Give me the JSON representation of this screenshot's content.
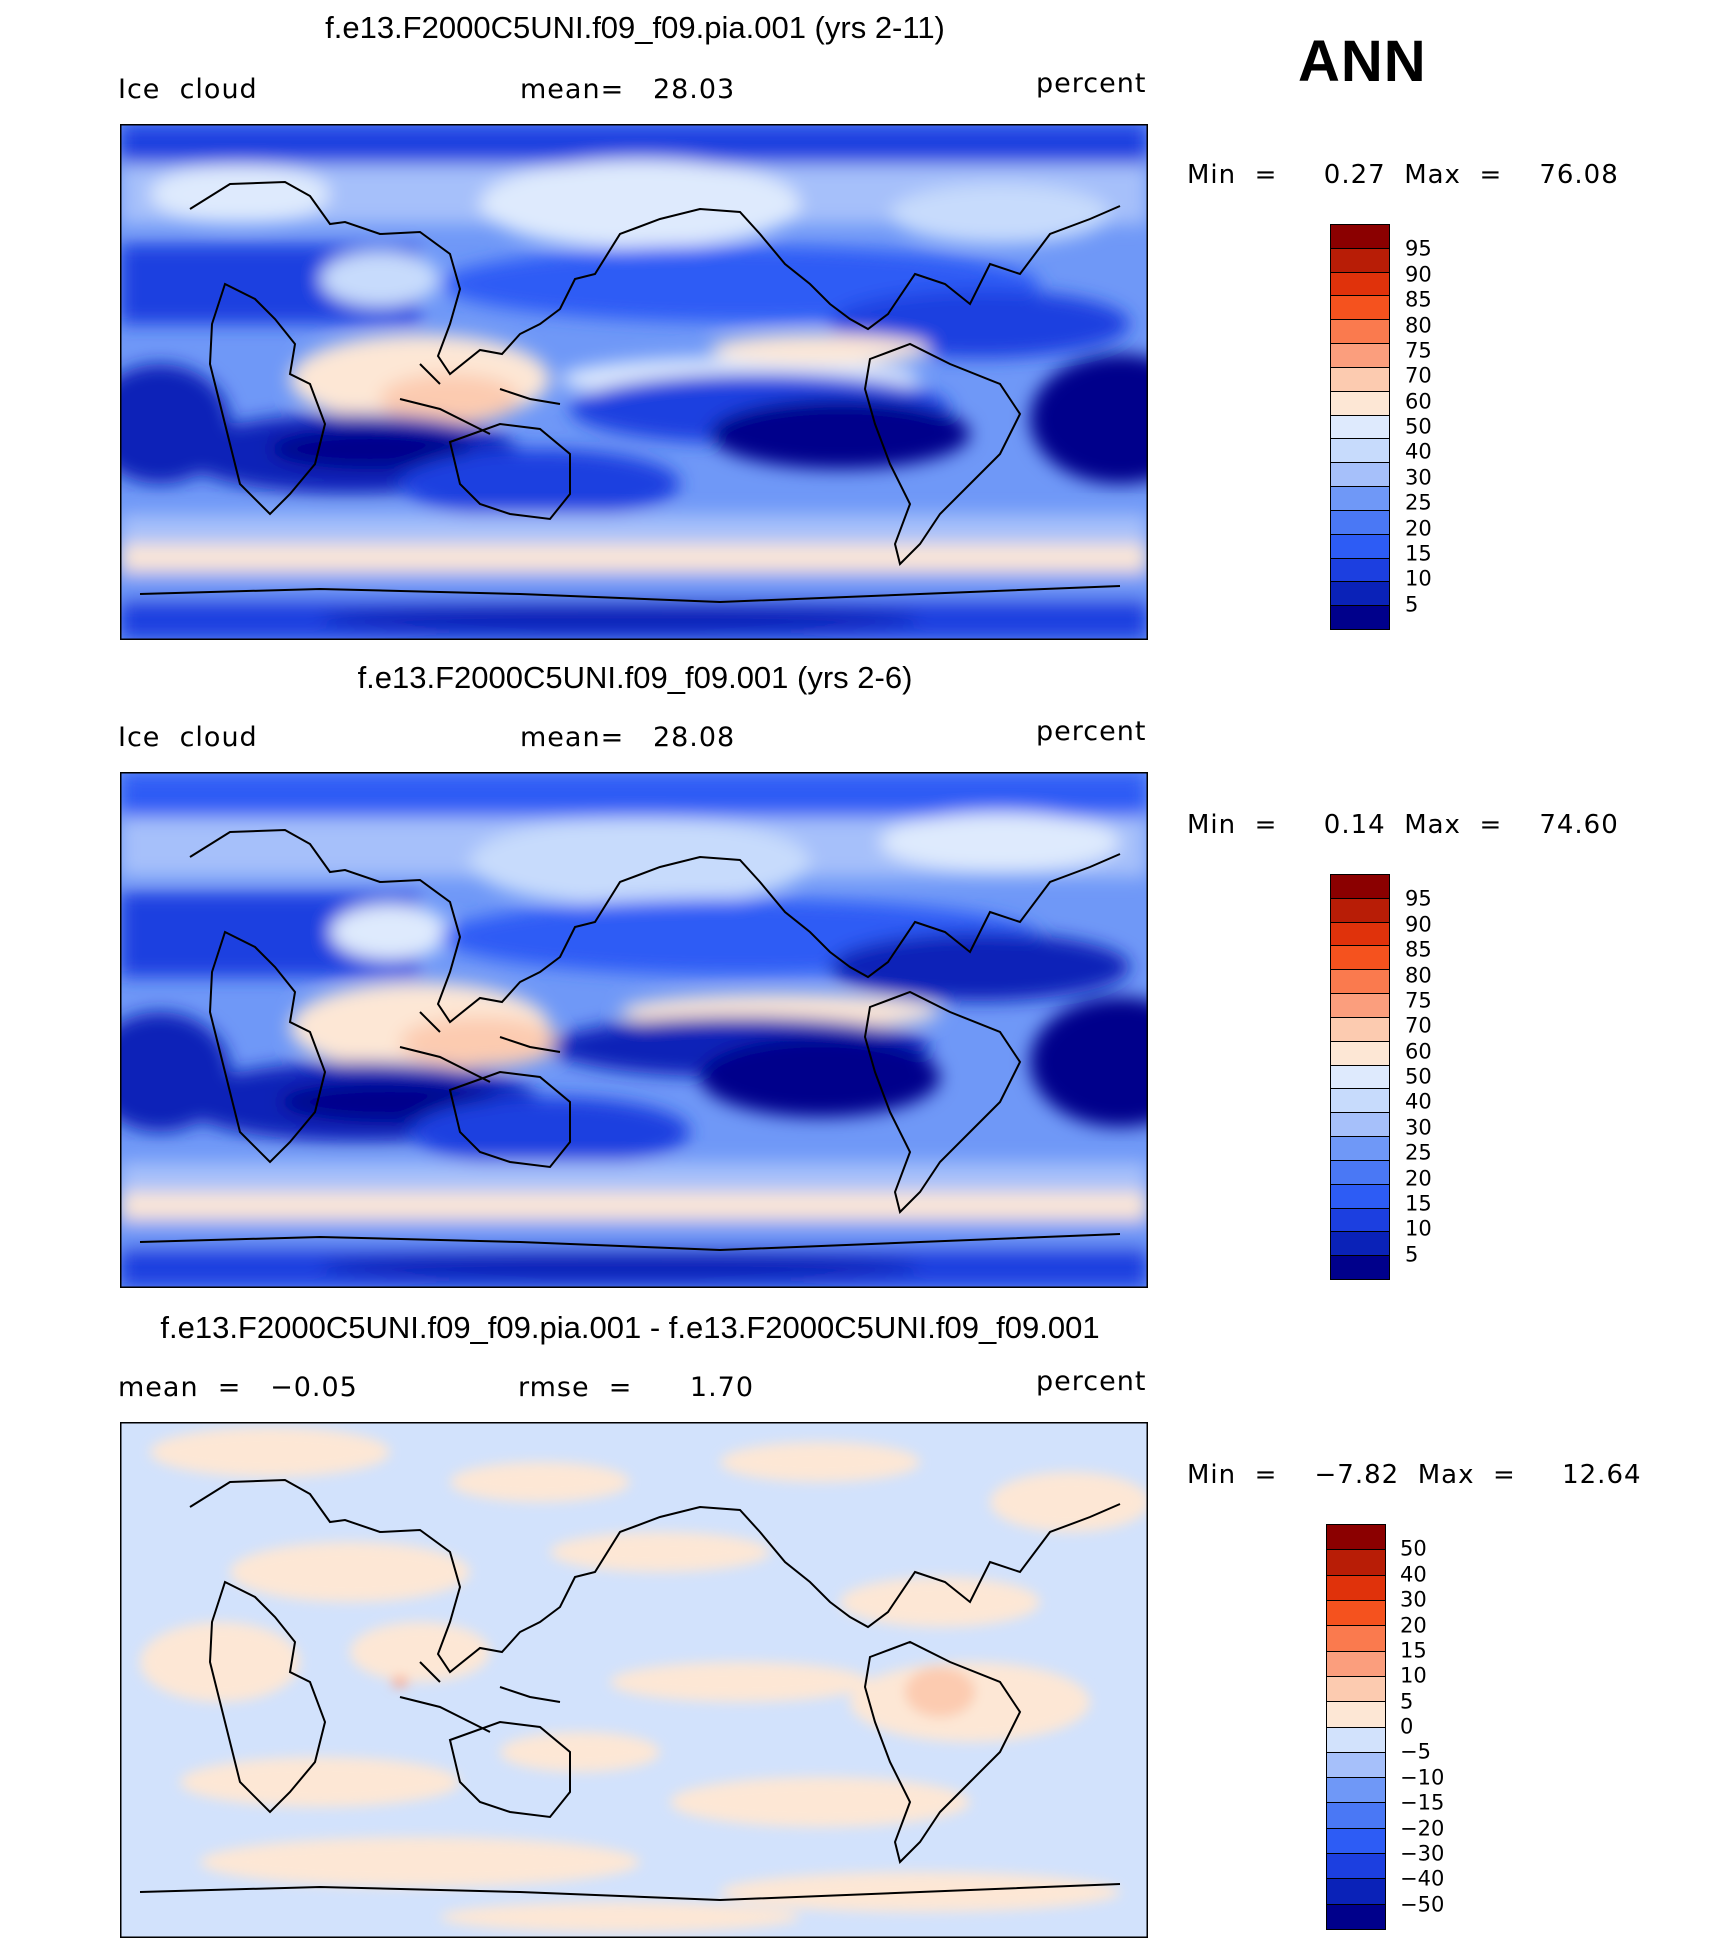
{
  "season": "ANN",
  "colors": {
    "abs": [
      "#00008b",
      "#0a22b8",
      "#1c3fe0",
      "#2d5cf5",
      "#4a78f5",
      "#6f98f7",
      "#a6c0fa",
      "#c7dbfc",
      "#deeafd",
      "#fde7d5",
      "#fccbb0",
      "#fb9e7d",
      "#fa7a4e",
      "#f5521e",
      "#e0320b",
      "#b81d06",
      "#8b0000"
    ],
    "diff": [
      "#00008b",
      "#0a22b8",
      "#1c3fe0",
      "#2d5cf5",
      "#4a78f5",
      "#6f98f7",
      "#a6c0fa",
      "#d2e2fc",
      "#fde7d5",
      "#fccbb0",
      "#fb9e7d",
      "#fa7a4e",
      "#f5521e",
      "#e0320b",
      "#b81d06",
      "#8b0000"
    ]
  },
  "panels": [
    {
      "title": "f.e13.F2000C5UNI.f09_f09.pia.001 (yrs 2-11)",
      "left_label": "Ice  cloud",
      "mid_label": "mean=   28.03",
      "right_label": "percent",
      "minmax": "Min  =     0.27  Max  =    76.08",
      "colorbar_labels": [
        "95",
        "90",
        "85",
        "80",
        "75",
        "70",
        "60",
        "50",
        "40",
        "30",
        "25",
        "20",
        "15",
        "10",
        "5"
      ]
    },
    {
      "title": "f.e13.F2000C5UNI.f09_f09.001 (yrs 2-6)",
      "left_label": "Ice  cloud",
      "mid_label": "mean=   28.08",
      "right_label": "percent",
      "minmax": "Min  =     0.14  Max  =    74.60",
      "colorbar_labels": [
        "95",
        "90",
        "85",
        "80",
        "75",
        "70",
        "60",
        "50",
        "40",
        "30",
        "25",
        "20",
        "15",
        "10",
        "5"
      ]
    },
    {
      "title": "f.e13.F2000C5UNI.f09_f09.pia.001 - f.e13.F2000C5UNI.f09_f09.001",
      "left_label": "mean  =   −0.05",
      "mid_label": "rmse  =      1.70",
      "right_label": "percent",
      "minmax": "Min  =    −7.82  Max  =     12.64",
      "colorbar_labels": [
        "50",
        "40",
        "30",
        "20",
        "15",
        "10",
        "5",
        "0",
        "−5",
        "−10",
        "−15",
        "−20",
        "−30",
        "−40",
        "−50"
      ]
    }
  ]
}
